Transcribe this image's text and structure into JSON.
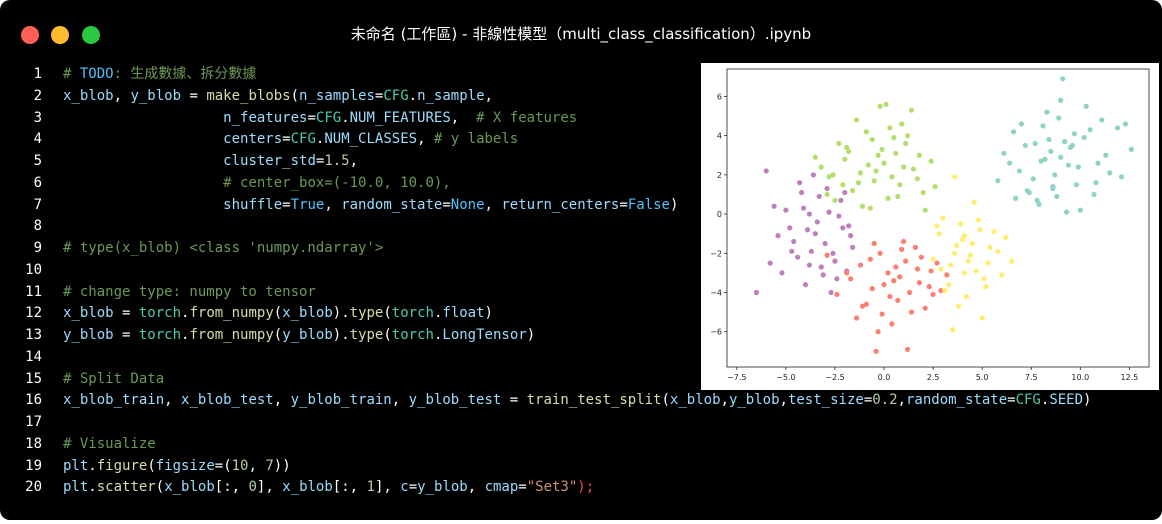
{
  "window": {
    "title": "未命名 (工作區) - 非線性模型（multi_class_classification）.ipynb",
    "controls": [
      "close",
      "minimize",
      "zoom"
    ]
  },
  "code_lines": [
    {
      "n": "1",
      "tokens": [
        {
          "t": "# ",
          "c": "cm"
        },
        {
          "t": "TODO",
          "c": "kw"
        },
        {
          "t": ": 生成數據、拆分數據",
          "c": "cm"
        }
      ]
    },
    {
      "n": "2",
      "tokens": [
        {
          "t": "x_blob",
          "c": "var"
        },
        {
          "t": ", ",
          "c": "pl"
        },
        {
          "t": "y_blob",
          "c": "var"
        },
        {
          "t": " = ",
          "c": "pl"
        },
        {
          "t": "make_blobs",
          "c": "fn"
        },
        {
          "t": "(",
          "c": "pl"
        },
        {
          "t": "n_samples",
          "c": "var"
        },
        {
          "t": "=",
          "c": "pl"
        },
        {
          "t": "CFG",
          "c": "cls"
        },
        {
          "t": ".",
          "c": "pl"
        },
        {
          "t": "n_sample",
          "c": "var"
        },
        {
          "t": ",",
          "c": "pl"
        }
      ]
    },
    {
      "n": "3",
      "tokens": [
        {
          "t": "                   ",
          "c": "pl"
        },
        {
          "t": "n_features",
          "c": "var"
        },
        {
          "t": "=",
          "c": "pl"
        },
        {
          "t": "CFG",
          "c": "cls"
        },
        {
          "t": ".",
          "c": "pl"
        },
        {
          "t": "NUM_FEATURES",
          "c": "var"
        },
        {
          "t": ",  ",
          "c": "pl"
        },
        {
          "t": "# X features",
          "c": "cm"
        }
      ]
    },
    {
      "n": "4",
      "tokens": [
        {
          "t": "                   ",
          "c": "pl"
        },
        {
          "t": "centers",
          "c": "var"
        },
        {
          "t": "=",
          "c": "pl"
        },
        {
          "t": "CFG",
          "c": "cls"
        },
        {
          "t": ".",
          "c": "pl"
        },
        {
          "t": "NUM_CLASSES",
          "c": "var"
        },
        {
          "t": ", ",
          "c": "pl"
        },
        {
          "t": "# y labels",
          "c": "cm"
        }
      ]
    },
    {
      "n": "5",
      "tokens": [
        {
          "t": "                   ",
          "c": "pl"
        },
        {
          "t": "cluster_std",
          "c": "var"
        },
        {
          "t": "=",
          "c": "pl"
        },
        {
          "t": "1.5",
          "c": "num"
        },
        {
          "t": ",",
          "c": "pl"
        }
      ]
    },
    {
      "n": "6",
      "tokens": [
        {
          "t": "                   ",
          "c": "pl"
        },
        {
          "t": "# center_box=(-10.0, 10.0),",
          "c": "cm"
        }
      ]
    },
    {
      "n": "7",
      "tokens": [
        {
          "t": "                   ",
          "c": "pl"
        },
        {
          "t": "shuffle",
          "c": "var"
        },
        {
          "t": "=",
          "c": "pl"
        },
        {
          "t": "True",
          "c": "const"
        },
        {
          "t": ", ",
          "c": "pl"
        },
        {
          "t": "random_state",
          "c": "var"
        },
        {
          "t": "=",
          "c": "pl"
        },
        {
          "t": "None",
          "c": "const"
        },
        {
          "t": ", ",
          "c": "pl"
        },
        {
          "t": "return_centers",
          "c": "var"
        },
        {
          "t": "=",
          "c": "pl"
        },
        {
          "t": "False",
          "c": "const"
        },
        {
          "t": ")",
          "c": "pl"
        }
      ]
    },
    {
      "n": "8",
      "tokens": []
    },
    {
      "n": "9",
      "tokens": [
        {
          "t": "# type(x_blob) <class 'numpy.ndarray'>",
          "c": "cm"
        }
      ]
    },
    {
      "n": "10",
      "tokens": []
    },
    {
      "n": "11",
      "tokens": [
        {
          "t": "# change type: numpy to tensor",
          "c": "cm"
        }
      ]
    },
    {
      "n": "12",
      "tokens": [
        {
          "t": "x_blob",
          "c": "var"
        },
        {
          "t": " = ",
          "c": "pl"
        },
        {
          "t": "torch",
          "c": "cls"
        },
        {
          "t": ".",
          "c": "pl"
        },
        {
          "t": "from_numpy",
          "c": "fn"
        },
        {
          "t": "(",
          "c": "pl"
        },
        {
          "t": "x_blob",
          "c": "var"
        },
        {
          "t": ").",
          "c": "pl"
        },
        {
          "t": "type",
          "c": "fn"
        },
        {
          "t": "(",
          "c": "pl"
        },
        {
          "t": "torch",
          "c": "cls"
        },
        {
          "t": ".",
          "c": "pl"
        },
        {
          "t": "float",
          "c": "var"
        },
        {
          "t": ")",
          "c": "pl"
        }
      ]
    },
    {
      "n": "13",
      "tokens": [
        {
          "t": "y_blob",
          "c": "var"
        },
        {
          "t": " = ",
          "c": "pl"
        },
        {
          "t": "torch",
          "c": "cls"
        },
        {
          "t": ".",
          "c": "pl"
        },
        {
          "t": "from_numpy",
          "c": "fn"
        },
        {
          "t": "(",
          "c": "pl"
        },
        {
          "t": "y_blob",
          "c": "var"
        },
        {
          "t": ").",
          "c": "pl"
        },
        {
          "t": "type",
          "c": "fn"
        },
        {
          "t": "(",
          "c": "pl"
        },
        {
          "t": "torch",
          "c": "cls"
        },
        {
          "t": ".",
          "c": "pl"
        },
        {
          "t": "LongTensor",
          "c": "var"
        },
        {
          "t": ")",
          "c": "pl"
        }
      ]
    },
    {
      "n": "14",
      "tokens": []
    },
    {
      "n": "15",
      "tokens": [
        {
          "t": "# Split Data",
          "c": "cm"
        }
      ]
    },
    {
      "n": "16",
      "tokens": [
        {
          "t": "x_blob_train",
          "c": "var"
        },
        {
          "t": ", ",
          "c": "pl"
        },
        {
          "t": "x_blob_test",
          "c": "var"
        },
        {
          "t": ", ",
          "c": "pl"
        },
        {
          "t": "y_blob_train",
          "c": "var"
        },
        {
          "t": ", ",
          "c": "pl"
        },
        {
          "t": "y_blob_test",
          "c": "var"
        },
        {
          "t": " = ",
          "c": "pl"
        },
        {
          "t": "train_test_split",
          "c": "fn"
        },
        {
          "t": "(",
          "c": "pl"
        },
        {
          "t": "x_blob",
          "c": "var"
        },
        {
          "t": ",",
          "c": "pl"
        },
        {
          "t": "y_blob",
          "c": "var"
        },
        {
          "t": ",",
          "c": "pl"
        },
        {
          "t": "test_size",
          "c": "var"
        },
        {
          "t": "=",
          "c": "pl"
        },
        {
          "t": "0.2",
          "c": "num"
        },
        {
          "t": ",",
          "c": "pl"
        },
        {
          "t": "random_state",
          "c": "var"
        },
        {
          "t": "=",
          "c": "pl"
        },
        {
          "t": "CFG",
          "c": "cls"
        },
        {
          "t": ".",
          "c": "pl"
        },
        {
          "t": "SEED",
          "c": "var"
        },
        {
          "t": ")",
          "c": "pl"
        }
      ]
    },
    {
      "n": "17",
      "tokens": []
    },
    {
      "n": "18",
      "tokens": [
        {
          "t": "# Visualize",
          "c": "cm"
        }
      ]
    },
    {
      "n": "19",
      "tokens": [
        {
          "t": "plt",
          "c": "var"
        },
        {
          "t": ".",
          "c": "pl"
        },
        {
          "t": "figure",
          "c": "fn"
        },
        {
          "t": "(",
          "c": "pl"
        },
        {
          "t": "figsize",
          "c": "var"
        },
        {
          "t": "=(",
          "c": "pl"
        },
        {
          "t": "10",
          "c": "num"
        },
        {
          "t": ", ",
          "c": "pl"
        },
        {
          "t": "7",
          "c": "num"
        },
        {
          "t": "))",
          "c": "pl"
        }
      ]
    },
    {
      "n": "20",
      "tokens": [
        {
          "t": "plt",
          "c": "var"
        },
        {
          "t": ".",
          "c": "pl"
        },
        {
          "t": "scatter",
          "c": "fn"
        },
        {
          "t": "(",
          "c": "pl"
        },
        {
          "t": "x_blob",
          "c": "var"
        },
        {
          "t": "[:, ",
          "c": "pl"
        },
        {
          "t": "0",
          "c": "num"
        },
        {
          "t": "], ",
          "c": "pl"
        },
        {
          "t": "x_blob",
          "c": "var"
        },
        {
          "t": "[:, ",
          "c": "pl"
        },
        {
          "t": "1",
          "c": "num"
        },
        {
          "t": "], ",
          "c": "pl"
        },
        {
          "t": "c",
          "c": "var"
        },
        {
          "t": "=",
          "c": "pl"
        },
        {
          "t": "y_blob",
          "c": "var"
        },
        {
          "t": ", ",
          "c": "pl"
        },
        {
          "t": "cmap",
          "c": "var"
        },
        {
          "t": "=",
          "c": "pl"
        },
        {
          "t": "\"Set3\"",
          "c": "str"
        },
        {
          "t": ");",
          "c": "red"
        }
      ]
    }
  ],
  "chart_data": {
    "type": "scatter",
    "title": "",
    "xlabel": "",
    "ylabel": "",
    "xlim": [
      -8.0,
      13.5
    ],
    "ylim": [
      -7.8,
      7.4
    ],
    "xticks": [
      -7.5,
      -5.0,
      -2.5,
      0.0,
      2.5,
      5.0,
      7.5,
      10.0,
      12.5
    ],
    "xtick_labels": [
      "−7.5",
      "−5.0",
      "−2.5",
      "0.0",
      "2.5",
      "5.0",
      "7.5",
      "10.0",
      "12.5"
    ],
    "yticks": [
      -6,
      -4,
      -2,
      0,
      2,
      4,
      6
    ],
    "ytick_labels": [
      "−6",
      "−4",
      "−2",
      "0",
      "2",
      "4",
      "6"
    ],
    "grid": false,
    "series": [
      {
        "color": "#8dd3c7",
        "x": [
          8.5,
          9.4,
          7.6,
          10.2,
          8.1,
          9.0,
          10.8,
          7.2,
          8.8,
          9.7,
          6.9,
          11.3,
          8.3,
          9.9,
          7.9,
          10.5,
          8.6,
          9.2,
          6.4,
          11.9,
          7.4,
          10.0,
          8.9,
          9.5,
          12.1,
          6.1,
          8.0,
          10.7,
          9.1,
          7.0,
          11.5,
          8.4,
          9.8,
          6.7,
          12.6,
          8.7,
          10.3,
          7.7,
          9.3,
          5.8,
          11.1,
          8.2,
          9.6,
          7.3,
          10.9,
          6.6,
          12.3,
          8.6,
          9.0,
          7.8
        ],
        "y": [
          3.2,
          2.5,
          1.8,
          3.9,
          4.5,
          2.9,
          1.6,
          3.5,
          0.9,
          4.1,
          2.2,
          3.0,
          5.2,
          2.4,
          0.5,
          4.3,
          1.3,
          3.7,
          2.6,
          4.4,
          1.1,
          0.2,
          4.9,
          3.4,
          1.9,
          3.1,
          2.7,
          1.0,
          6.9,
          4.6,
          2.1,
          3.8,
          1.5,
          0.8,
          3.3,
          2.0,
          5.5,
          3.6,
          0.1,
          1.7,
          4.8,
          2.8,
          3.5,
          1.2,
          2.6,
          4.2,
          4.6,
          1.4,
          5.8,
          0.7
        ]
      },
      {
        "color": "#b3de69",
        "x": [
          -1.2,
          -0.3,
          0.8,
          -2.0,
          1.5,
          -0.9,
          0.2,
          -1.6,
          1.1,
          -2.6,
          0.5,
          -0.5,
          2.0,
          -1.9,
          0.0,
          -2.9,
          1.8,
          -1.1,
          0.9,
          -0.2,
          2.4,
          -2.3,
          0.4,
          -0.7,
          1.4,
          -3.2,
          2.6,
          -0.1,
          -1.4,
          0.7,
          -2.1,
          1.2,
          -0.4,
          0.1,
          -1.8,
          2.1,
          -0.6,
          -3.5,
          1.0,
          -1.3,
          0.3,
          -2.5,
          1.7,
          -0.8,
          0.6,
          -2.8
        ],
        "y": [
          2.1,
          3.0,
          1.5,
          2.8,
          2.3,
          4.2,
          0.8,
          1.2,
          3.6,
          2.0,
          3.9,
          1.7,
          1.1,
          3.4,
          2.6,
          1.0,
          3.0,
          0.4,
          4.6,
          5.5,
          2.7,
          3.6,
          1.9,
          0.3,
          5.3,
          2.4,
          1.4,
          3.3,
          4.8,
          0.9,
          1.5,
          4.0,
          2.2,
          5.6,
          3.2,
          0.2,
          3.8,
          2.9,
          2.4,
          1.6,
          4.4,
          0.7,
          1.8,
          2.5,
          3.1,
          1.9
        ]
      },
      {
        "color": "#bc80bd",
        "x": [
          -3.5,
          -2.6,
          -4.1,
          -2.9,
          -1.8,
          -3.8,
          -4.6,
          -2.2,
          -3.1,
          -5.0,
          -3.4,
          -2.5,
          -4.3,
          -1.6,
          -3.7,
          -5.4,
          -2.8,
          -4.0,
          -3.3,
          -1.9,
          -4.8,
          -6.0,
          -3.0,
          -2.3,
          -4.4,
          -3.6,
          -2.0,
          -5.2,
          -3.9,
          -2.7,
          -6.5,
          -4.2,
          -1.7,
          -3.2,
          -5.6,
          -2.4,
          -4.7,
          -3.8,
          -2.1,
          -5.8
        ],
        "y": [
          -1.0,
          -2.0,
          0.3,
          1.3,
          -0.6,
          -2.6,
          -1.4,
          0.7,
          -3.1,
          0.2,
          -0.4,
          -2.4,
          1.6,
          -1.7,
          -1.9,
          -1.1,
          0.1,
          -3.6,
          0.9,
          -2.9,
          -0.7,
          2.2,
          -1.5,
          -0.1,
          -2.2,
          2.0,
          1.1,
          -3.0,
          -0.8,
          -4.0,
          -4.0,
          1.1,
          -1.1,
          -2.7,
          0.4,
          -3.3,
          -1.9,
          0.0,
          -0.7,
          -2.5
        ]
      },
      {
        "color": "#fb8072",
        "x": [
          0.2,
          1.1,
          -0.6,
          1.8,
          -1.2,
          0.7,
          2.4,
          -0.2,
          1.4,
          -1.7,
          0.9,
          2.9,
          -0.9,
          0.4,
          1.9,
          -2.4,
          0.0,
          1.3,
          3.2,
          -0.5,
          0.6,
          2.1,
          -1.4,
          1.6,
          -0.3,
          0.8,
          2.7,
          -1.9,
          0.3,
          1.2,
          -0.7,
          2.3,
          -2.9,
          1.0,
          -0.1,
          1.7,
          -1.1,
          0.5,
          2.5,
          -0.4
        ],
        "y": [
          -3.0,
          -2.4,
          -3.8,
          -3.5,
          -2.6,
          -4.4,
          -2.9,
          -2.0,
          -5.0,
          -3.3,
          -1.8,
          -3.9,
          -4.6,
          -5.6,
          -2.2,
          -4.1,
          -3.6,
          -4.0,
          -3.1,
          -1.5,
          -2.7,
          -4.8,
          -5.3,
          -1.7,
          -6.0,
          -3.2,
          -2.5,
          -3.0,
          -4.2,
          -6.9,
          -2.3,
          -3.7,
          -2.1,
          -1.4,
          -5.1,
          -2.8,
          -4.7,
          -3.4,
          -4.1,
          -7.0
        ]
      },
      {
        "color": "#ffed6f",
        "x": [
          3.6,
          4.5,
          2.8,
          5.3,
          3.9,
          4.1,
          5.8,
          2.5,
          4.9,
          3.3,
          6.2,
          4.4,
          3.0,
          5.1,
          3.7,
          4.7,
          2.9,
          5.6,
          4.2,
          3.4,
          6.0,
          4.0,
          3.1,
          5.0,
          4.6,
          3.8,
          5.4,
          2.7,
          4.3,
          4.8,
          3.5,
          6.5,
          4.1,
          5.2,
          3.6
        ],
        "y": [
          -2.0,
          -1.5,
          -1.0,
          -2.5,
          -0.5,
          -3.0,
          -1.9,
          -2.3,
          -0.8,
          -3.6,
          -1.2,
          -2.1,
          -0.2,
          -3.3,
          -1.6,
          -2.9,
          -2.8,
          -0.9,
          -4.2,
          -2.6,
          -3.1,
          -1.3,
          -3.9,
          -5.3,
          0.6,
          -4.7,
          -1.7,
          -0.6,
          -2.4,
          -0.3,
          -5.9,
          -2.4,
          -1.1,
          -3.7,
          1.9
        ]
      }
    ]
  }
}
